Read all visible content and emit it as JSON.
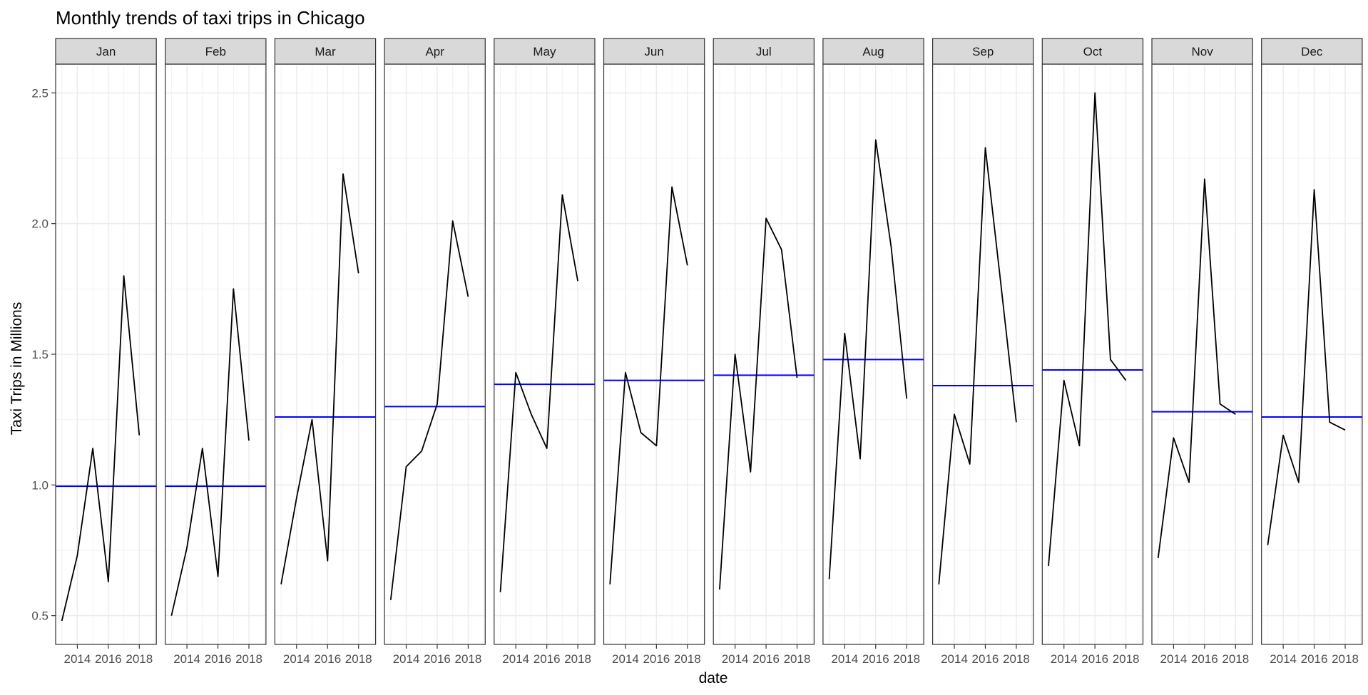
{
  "chart_data": {
    "type": "line",
    "title": "Monthly trends of taxi trips in Chicago",
    "xlabel": "date",
    "ylabel": "Taxi Trips in Millions",
    "facet_labels": [
      "Jan",
      "Feb",
      "Mar",
      "Apr",
      "May",
      "Jun",
      "Jul",
      "Aug",
      "Sep",
      "Oct",
      "Nov",
      "Dec"
    ],
    "x_ticks": [
      2014,
      2016,
      2018
    ],
    "x_tick_labels": [
      "2014",
      "2016",
      "2018"
    ],
    "xlim": [
      2012.6,
      2019.1
    ],
    "y_ticks": [
      0.5,
      1.0,
      1.5,
      2.0,
      2.5
    ],
    "y_tick_labels": [
      "0.5",
      "1.0",
      "1.5",
      "2.0",
      "2.5"
    ],
    "ylim": [
      0.39,
      2.61
    ],
    "grid": true,
    "line_color": "#000000",
    "mean_line_color": "#0000ff",
    "panels": [
      {
        "month": "Jan",
        "x": [
          2013,
          2014,
          2015,
          2016,
          2017,
          2018
        ],
        "y": [
          0.48,
          0.73,
          1.14,
          0.63,
          1.8,
          1.19
        ],
        "mean": 0.995
      },
      {
        "month": "Feb",
        "x": [
          2013,
          2014,
          2015,
          2016,
          2017,
          2018
        ],
        "y": [
          0.5,
          0.76,
          1.14,
          0.65,
          1.75,
          1.17
        ],
        "mean": 0.995
      },
      {
        "month": "Mar",
        "x": [
          2013,
          2014,
          2015,
          2016,
          2017,
          2018
        ],
        "y": [
          0.62,
          0.95,
          1.25,
          0.71,
          2.19,
          1.81
        ],
        "mean": 1.26
      },
      {
        "month": "Apr",
        "x": [
          2013,
          2014,
          2015,
          2016,
          2017,
          2018
        ],
        "y": [
          0.56,
          1.07,
          1.13,
          1.31,
          2.01,
          1.72
        ],
        "mean": 1.3
      },
      {
        "month": "May",
        "x": [
          2013,
          2014,
          2015,
          2016,
          2017,
          2018
        ],
        "y": [
          0.59,
          1.43,
          1.27,
          1.14,
          2.11,
          1.78
        ],
        "mean": 1.385
      },
      {
        "month": "Jun",
        "x": [
          2013,
          2014,
          2015,
          2016,
          2017,
          2018
        ],
        "y": [
          0.62,
          1.43,
          1.2,
          1.15,
          2.14,
          1.84
        ],
        "mean": 1.4
      },
      {
        "month": "Jul",
        "x": [
          2013,
          2014,
          2015,
          2016,
          2017,
          2018
        ],
        "y": [
          0.6,
          1.5,
          1.05,
          2.02,
          1.9,
          1.41
        ],
        "mean": 1.42
      },
      {
        "month": "Aug",
        "x": [
          2013,
          2014,
          2015,
          2016,
          2017,
          2018
        ],
        "y": [
          0.64,
          1.58,
          1.1,
          2.32,
          1.91,
          1.33
        ],
        "mean": 1.48
      },
      {
        "month": "Sep",
        "x": [
          2013,
          2014,
          2015,
          2016,
          2017,
          2018
        ],
        "y": [
          0.62,
          1.27,
          1.08,
          2.29,
          1.77,
          1.24
        ],
        "mean": 1.38
      },
      {
        "month": "Oct",
        "x": [
          2013,
          2014,
          2015,
          2016,
          2017,
          2018
        ],
        "y": [
          0.69,
          1.4,
          1.15,
          2.5,
          1.48,
          1.4
        ],
        "mean": 1.44
      },
      {
        "month": "Nov",
        "x": [
          2013,
          2014,
          2015,
          2016,
          2017,
          2018
        ],
        "y": [
          0.72,
          1.18,
          1.01,
          2.17,
          1.31,
          1.27
        ],
        "mean": 1.28
      },
      {
        "month": "Dec",
        "x": [
          2013,
          2014,
          2015,
          2016,
          2017,
          2018
        ],
        "y": [
          0.77,
          1.19,
          1.01,
          2.13,
          1.24,
          1.21
        ],
        "mean": 1.26
      }
    ]
  }
}
